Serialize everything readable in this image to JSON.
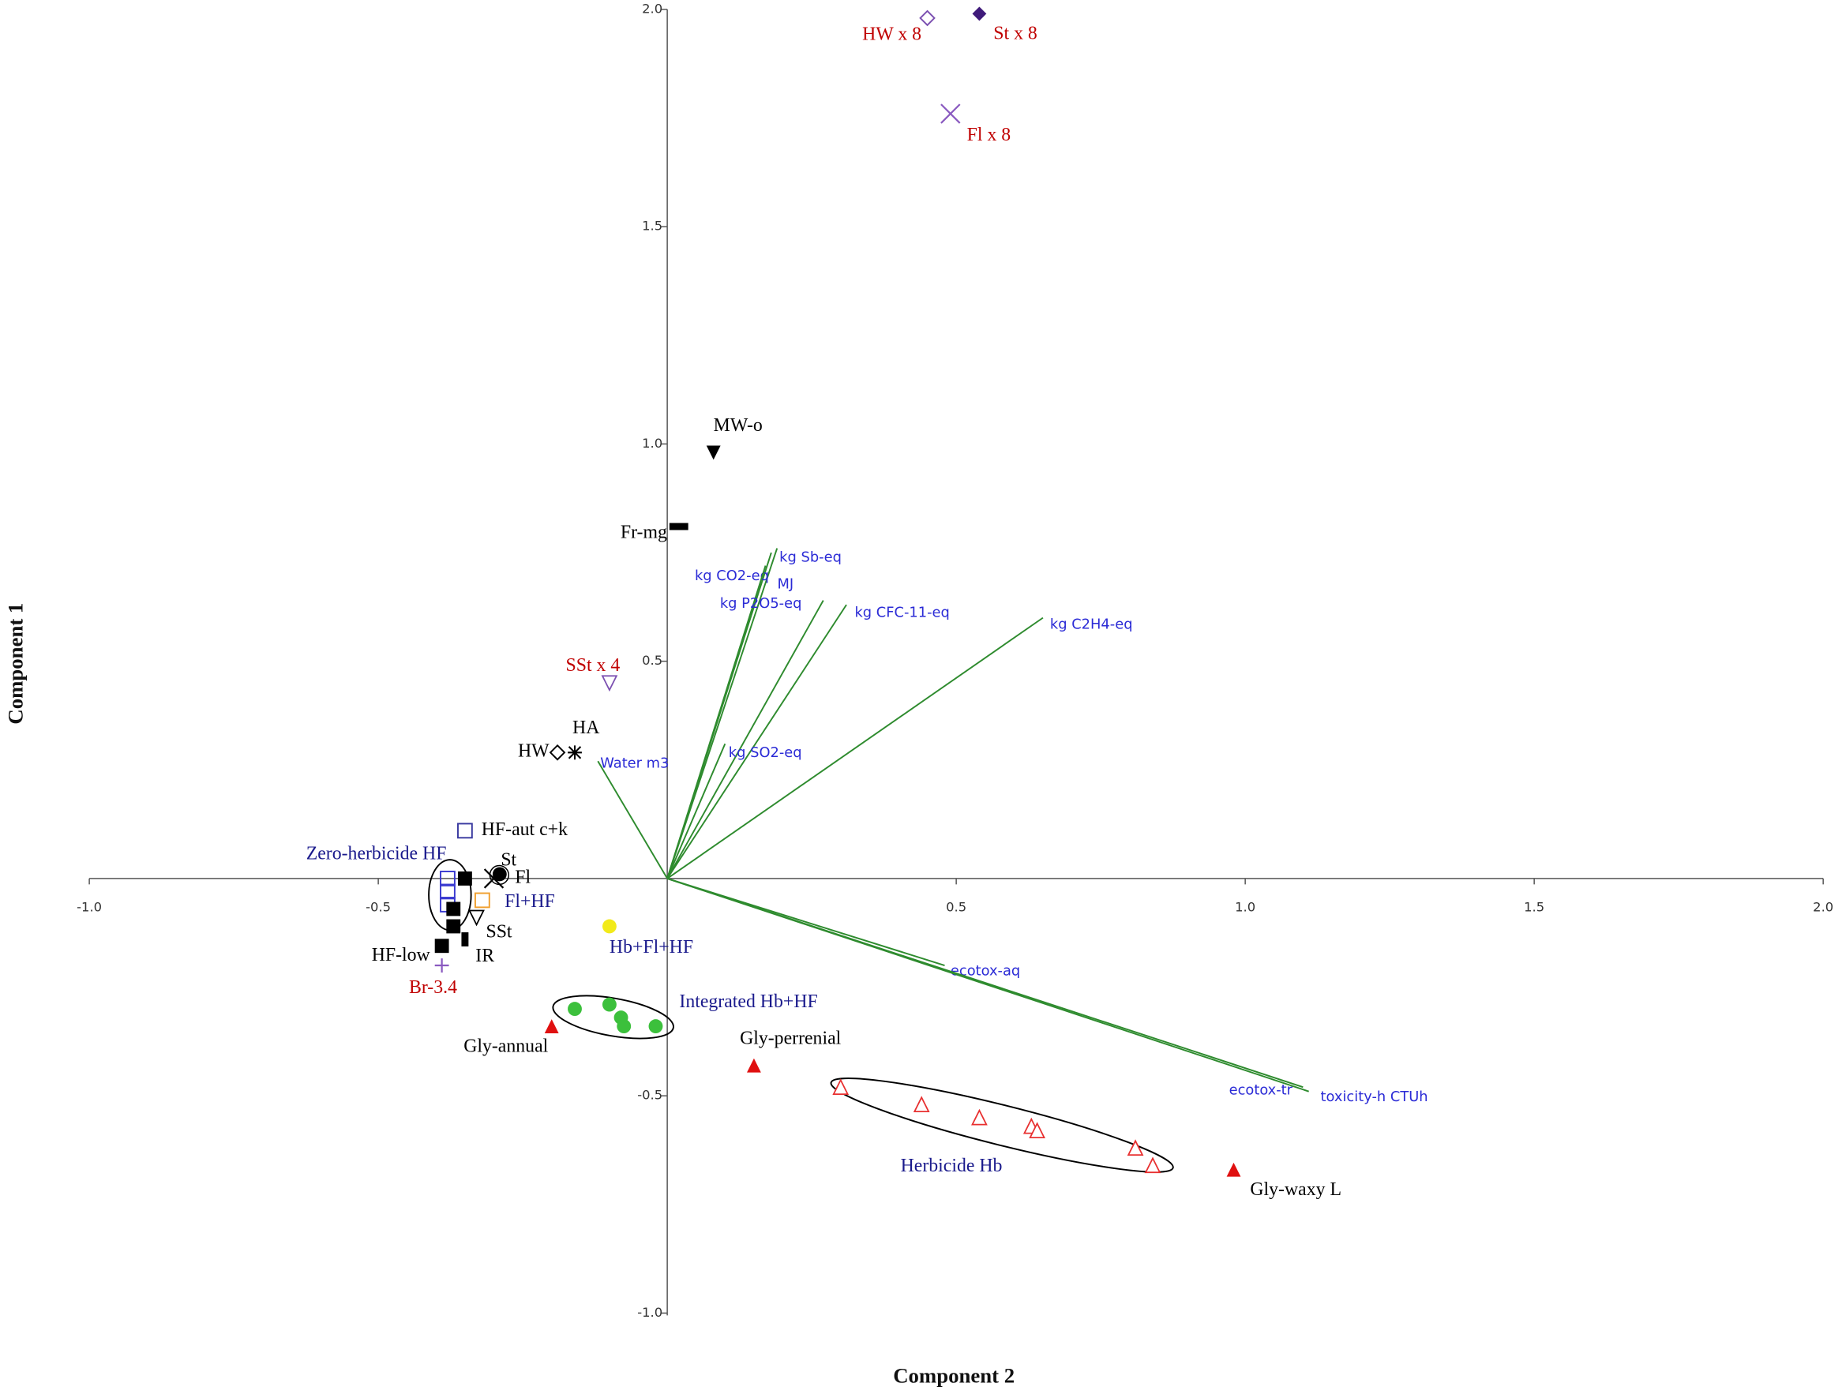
{
  "chart_data": {
    "type": "scatter",
    "x_label": "Component 2",
    "y_label": "Component 1",
    "xlim": [
      -1.0,
      2.0
    ],
    "ylim": [
      -1.0,
      2.0
    ],
    "xticks": [
      {
        "value": -1.0,
        "label": "-1.0"
      },
      {
        "value": -0.5,
        "label": "-0.5"
      },
      0.5,
      {
        "value": 1.0,
        "label": "1.0"
      },
      1.5,
      {
        "value": 2.0,
        "label": "2.0"
      }
    ],
    "yticks": [
      {
        "value": -1.0,
        "label": "-1.0"
      },
      -0.5,
      0.5,
      {
        "value": 1.0,
        "label": "1.0"
      },
      1.5,
      {
        "value": 2.0,
        "label": "2.0"
      }
    ],
    "series": [
      {
        "name": "HW x 8",
        "marker": "diamond-open",
        "color": "#7b4fb0",
        "label_color": "#c00000",
        "x": [
          0.45
        ],
        "y": [
          1.98
        ]
      },
      {
        "name": "St x 8",
        "marker": "diamond-filled",
        "color": "#3f1a7a",
        "label_color": "#c00000",
        "x": [
          0.54
        ],
        "y": [
          1.99
        ]
      },
      {
        "name": "Fl x 8",
        "marker": "x",
        "color": "#8a5ac0",
        "label_color": "#c00000",
        "x": [
          0.49
        ],
        "y": [
          1.76
        ]
      },
      {
        "name": "MW-o",
        "marker": "tri-down-filled",
        "color": "#000000",
        "label_color": "#000000",
        "x": [
          0.08
        ],
        "y": [
          0.98
        ]
      },
      {
        "name": "Fr-mg",
        "marker": "bar",
        "color": "#000000",
        "label_color": "#000000",
        "x": [
          0.02
        ],
        "y": [
          0.81
        ]
      },
      {
        "name": "SSt x 4",
        "marker": "tri-down-open",
        "color": "#7b4fb0",
        "label_color": "#c00000",
        "x": [
          -0.1
        ],
        "y": [
          0.45
        ]
      },
      {
        "name": "HA",
        "marker": "asterisk",
        "color": "#000000",
        "label_color": "#000000",
        "x": [
          -0.16
        ],
        "y": [
          0.29
        ]
      },
      {
        "name": "HW",
        "marker": "diamond-open",
        "color": "#000000",
        "label_color": "#000000",
        "x": [
          -0.19
        ],
        "y": [
          0.29
        ]
      },
      {
        "name": "HF-aut c+k",
        "marker": "square-open",
        "color": "#3a3aa0",
        "label_color": "#000000",
        "x": [
          -0.35
        ],
        "y": [
          0.11
        ]
      },
      {
        "name": "Zero-herbicide HF",
        "marker": "square-open",
        "color": "#3a3ad0",
        "label_color": "#1a1a8c",
        "x": [
          -0.38,
          -0.38,
          -0.38
        ],
        "y": [
          0.0,
          -0.03,
          -0.06
        ]
      },
      {
        "name": "St",
        "marker": "circle-filled",
        "color": "#000000",
        "label_color": "#000000",
        "x": [
          -0.29
        ],
        "y": [
          0.01
        ]
      },
      {
        "name": "Fl",
        "marker": "x",
        "color": "#000000",
        "label_color": "#000000",
        "x": [
          -0.3
        ],
        "y": [
          0.0
        ]
      },
      {
        "name": "Fl+HF",
        "marker": "square-open",
        "color": "#f0a030",
        "label_color": "#1a1a8c",
        "x": [
          -0.32
        ],
        "y": [
          -0.05
        ]
      },
      {
        "name": "SSt",
        "marker": "tri-down-open",
        "color": "#000000",
        "label_color": "#000000",
        "x": [
          -0.33
        ],
        "y": [
          -0.09
        ]
      },
      {
        "name": "HF-low",
        "marker": "square-filled",
        "color": "#000000",
        "label_color": "#000000",
        "x": [
          -0.39,
          -0.37,
          -0.37,
          -0.35
        ],
        "y": [
          -0.155,
          -0.11,
          -0.07,
          0.0
        ]
      },
      {
        "name": "IR",
        "marker": "rect-small",
        "color": "#000000",
        "label_color": "#000000",
        "x": [
          -0.35
        ],
        "y": [
          -0.14
        ]
      },
      {
        "name": "Br-3.4",
        "marker": "plus",
        "color": "#8a5ac0",
        "label_color": "#c00000",
        "x": [
          -0.39
        ],
        "y": [
          -0.2
        ]
      },
      {
        "name": "Hb+Fl+HF",
        "marker": "circle-filled",
        "color": "#f2ea1a",
        "label_color": "#1a1a8c",
        "x": [
          -0.1
        ],
        "y": [
          -0.11
        ]
      },
      {
        "name": "Integrated Hb+HF",
        "marker": "circle-filled",
        "color": "#3cc03c",
        "label_color": "#1a1a8c",
        "x": [
          -0.16,
          -0.1,
          -0.08,
          -0.075,
          -0.02
        ],
        "y": [
          -0.3,
          -0.29,
          -0.32,
          -0.34,
          -0.34
        ]
      },
      {
        "name": "Gly-annual",
        "marker": "tri-up-filled",
        "color": "#e01010",
        "label_color": "#000000",
        "x": [
          -0.2
        ],
        "y": [
          -0.34
        ]
      },
      {
        "name": "Gly-perrenial",
        "marker": "tri-up-filled",
        "color": "#e01010",
        "label_color": "#000000",
        "x": [
          0.15
        ],
        "y": [
          -0.43
        ]
      },
      {
        "name": "Herbicide Hb",
        "marker": "tri-up-open",
        "color": "#e83030",
        "label_color": "#1a1a8c",
        "x": [
          0.3,
          0.44,
          0.54,
          0.63,
          0.64,
          0.81,
          0.84
        ],
        "y": [
          -0.48,
          -0.52,
          -0.55,
          -0.57,
          -0.58,
          -0.62,
          -0.66
        ]
      },
      {
        "name": "Gly-waxy L",
        "marker": "tri-up-filled",
        "color": "#e01010",
        "label_color": "#000000",
        "x": [
          0.98
        ],
        "y": [
          -0.67
        ]
      }
    ],
    "loadings": {
      "color": "#2e8b2e",
      "names": [
        "kg Sb-eq",
        "kg CO2-eq",
        "MJ",
        "kg P2O5-eq",
        "kg CFC-11-eq",
        "kg C2H4-eq",
        "kg SO2-eq",
        "Water m3",
        "ecotox-aq",
        "ecotox-tr",
        "toxicity-h CTUh"
      ],
      "x": [
        0.19,
        0.18,
        0.17,
        0.27,
        0.31,
        0.65,
        0.1,
        -0.12,
        0.48,
        1.1,
        1.11
      ],
      "y": [
        0.76,
        0.75,
        0.72,
        0.64,
        0.63,
        0.6,
        0.31,
        0.27,
        -0.2,
        -0.48,
        -0.49
      ]
    }
  }
}
